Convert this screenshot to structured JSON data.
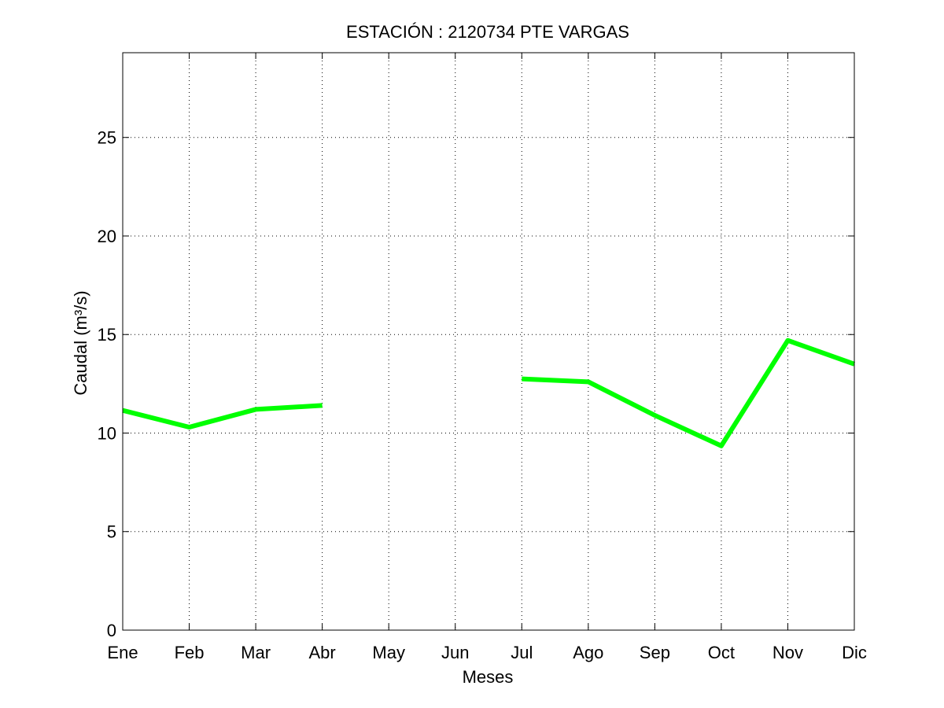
{
  "chart_data": {
    "type": "line",
    "title": "ESTACIÓN :  2120734  PTE VARGAS",
    "xlabel": "Meses",
    "ylabel": "Caudal (m³/s)",
    "categories": [
      "Ene",
      "Feb",
      "Mar",
      "Abr",
      "May",
      "Jun",
      "Jul",
      "Ago",
      "Sep",
      "Oct",
      "Nov",
      "Dic"
    ],
    "yticks": [
      0,
      5,
      10,
      15,
      20,
      25
    ],
    "ylim": [
      0,
      29.3
    ],
    "grid": true,
    "series": [
      {
        "color": "#00ff00",
        "values": [
          11.15,
          10.3,
          11.2,
          11.4,
          null,
          null,
          12.75,
          12.6,
          10.9,
          9.35,
          14.7,
          13.5
        ]
      }
    ]
  }
}
